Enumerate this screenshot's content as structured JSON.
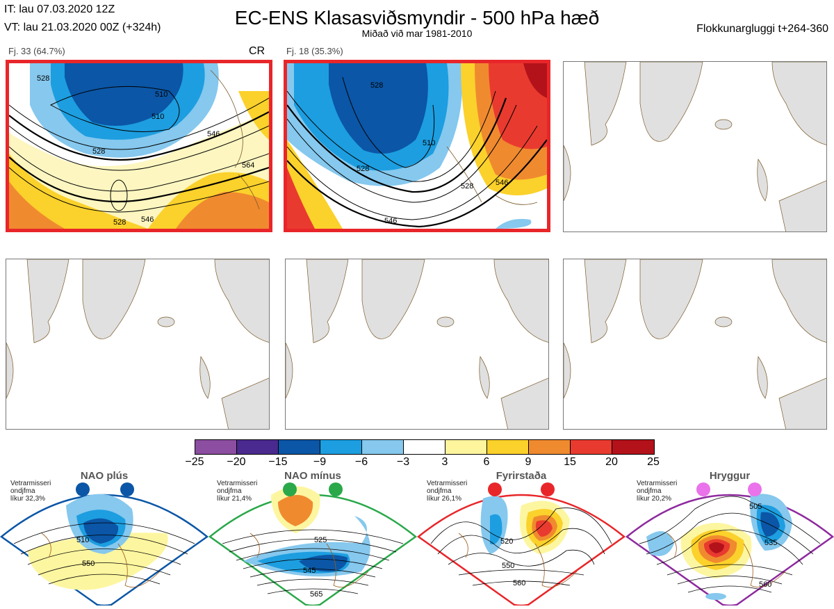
{
  "header": {
    "it_line": "IT: lau 07.03.2020 12Z",
    "vt_line": "VT: lau 21.03.2020 00Z  (+324h)",
    "title": "EC-ENS Klasasviðsmyndir - 500 hPa hæð",
    "subtitle": "Miðað við mar 1981-2010",
    "window": "Flokkunargluggi t+264-360"
  },
  "panels": [
    {
      "label": "Fj. 33 (64.7%)",
      "tag": "CR",
      "highlighted": true,
      "contour_labels": [
        "528",
        "510",
        "510",
        "528",
        "546",
        "564",
        "528",
        "546"
      ]
    },
    {
      "label": "Fj. 18 (35.3%)",
      "tag": "",
      "highlighted": true,
      "contour_labels": [
        "528",
        "510",
        "528",
        "546",
        "546",
        "528"
      ]
    },
    {
      "label": "",
      "tag": "",
      "highlighted": false
    },
    {
      "label": "",
      "tag": "",
      "highlighted": false
    },
    {
      "label": "",
      "tag": "",
      "highlighted": false
    },
    {
      "label": "",
      "tag": "",
      "highlighted": false
    }
  ],
  "colorbar": {
    "colors": [
      "#8c4ea0",
      "#4a2a8e",
      "#0b56a6",
      "#1d9ee0",
      "#86c8ee",
      "#ffffff",
      "#fff59d",
      "#fbd12b",
      "#f08a2f",
      "#e93a2f",
      "#b3121b"
    ],
    "ticks": [
      "−25",
      "−20",
      "−15",
      "−9",
      "−6",
      "−3",
      "3",
      "6",
      "9",
      "15",
      "20",
      "25"
    ]
  },
  "regimes": [
    {
      "name": "NAO plús",
      "line1": "Vetrarmisseri",
      "line2": "ondjfma",
      "line3": "líkur 32,3%",
      "frame_color": "#0b56a6",
      "dot_color": "#0b56a6",
      "contours": [
        "510",
        "550"
      ]
    },
    {
      "name": "NAO mínus",
      "line1": "Vetrarmisseri",
      "line2": "ondjfma",
      "line3": "líkur 21,4%",
      "frame_color": "#2aa84a",
      "dot_color": "#2aa84a",
      "contours": [
        "525",
        "545",
        "565"
      ]
    },
    {
      "name": "Fyrirstaða",
      "line1": "Vetrarmisseri",
      "line2": "ondjfma",
      "line3": "líkur 26,1%",
      "frame_color": "#e8262a",
      "dot_color": "#e8262a",
      "contours": [
        "520",
        "550",
        "560"
      ]
    },
    {
      "name": "Hryggur",
      "line1": "Vetrarmisseri",
      "line2": "ondjfma",
      "line3": "líkur 20,2%",
      "frame_color": "#8e2a9e",
      "dot_color": "#ea72ea",
      "contours": [
        "505",
        "535",
        "560"
      ]
    }
  ]
}
